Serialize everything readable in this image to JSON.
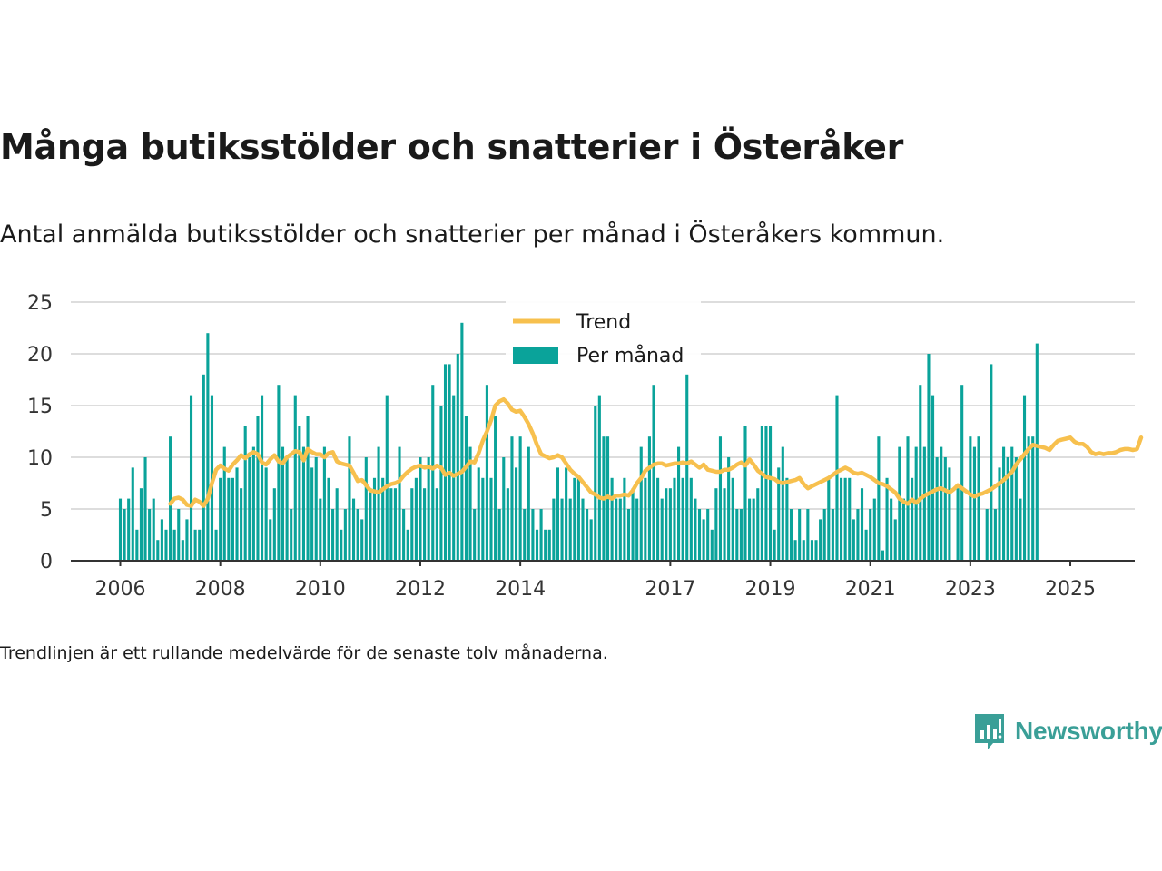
{
  "title": "Många butiksstölder och snatterier i Österåker",
  "subtitle": "Antal anmälda butiksstölder och snatterier per månad i Österåkers kommun.",
  "footnote": "Trendlinjen är ett rullande medelvärde för de senaste tolv månaderna.",
  "brand": {
    "name": "Newsworthy",
    "color": "#3a9f97",
    "icon": "newsworthy-chart-icon"
  },
  "colors": {
    "bars": "#0aa39a",
    "trend": "#f7c04e",
    "grid": "#dddddd",
    "axis": "#333333"
  },
  "chart_data": {
    "type": "bar",
    "x_start": "2006-01",
    "frequency": "monthly",
    "ylim": [
      0,
      25
    ],
    "yticks": [
      0,
      5,
      10,
      15,
      20,
      25
    ],
    "xticks": [
      "2006",
      "2008",
      "2010",
      "2012",
      "2014",
      "2017",
      "2019",
      "2021",
      "2023",
      "2025"
    ],
    "grid": true,
    "legend_position": "top-center",
    "series": [
      {
        "name": "Per månad",
        "type": "bar",
        "values": [
          6,
          5,
          6,
          9,
          3,
          7,
          10,
          5,
          6,
          2,
          4,
          3,
          12,
          3,
          5,
          2,
          4,
          16,
          3,
          3,
          18,
          22,
          16,
          3,
          8,
          11,
          8,
          8,
          9,
          7,
          13,
          10,
          11,
          14,
          16,
          9,
          4,
          7,
          17,
          11,
          10,
          5,
          16,
          13,
          11,
          14,
          9,
          10,
          6,
          11,
          8,
          5,
          7,
          3,
          5,
          12,
          6,
          5,
          4,
          10,
          7,
          8,
          11,
          8,
          16,
          7,
          7,
          11,
          5,
          3,
          7,
          8,
          10,
          7,
          10,
          17,
          7,
          15,
          19,
          19,
          16,
          20,
          23,
          14,
          11,
          5,
          9,
          8,
          17,
          8,
          14,
          5,
          10,
          7,
          12,
          9,
          12,
          5,
          11,
          5,
          3,
          5,
          3,
          3,
          6,
          9,
          6,
          9,
          6,
          8,
          8,
          6,
          5,
          4,
          15,
          16,
          12,
          12,
          8,
          6,
          6,
          8,
          5,
          7,
          6,
          11,
          8,
          12,
          17,
          8,
          6,
          7,
          7,
          8,
          11,
          8,
          18,
          8,
          6,
          5,
          4,
          5,
          3,
          7,
          12,
          7,
          10,
          8,
          5,
          5,
          13,
          6,
          6,
          7,
          13,
          13,
          13,
          3,
          9,
          11,
          8,
          5,
          2,
          5,
          2,
          5,
          2,
          2,
          4,
          5,
          8,
          5,
          16,
          8,
          8,
          8,
          4,
          5,
          7,
          3,
          5,
          6,
          12,
          1,
          8,
          6,
          4,
          11,
          6,
          12,
          8,
          11,
          17,
          11,
          20,
          16,
          10,
          11,
          10,
          9,
          0,
          7,
          17,
          0,
          12,
          11,
          12,
          0,
          5,
          19,
          5,
          9,
          11,
          10,
          11,
          10,
          6,
          16,
          12,
          12,
          21
        ]
      },
      {
        "name": "Trend",
        "type": "line",
        "x_start": "2007-01",
        "values": [
          5.5,
          6.0,
          6.1,
          5.9,
          5.4,
          5.3,
          5.9,
          5.7,
          5.3,
          6.0,
          7.5,
          8.8,
          9.2,
          8.9,
          8.7,
          9.3,
          9.7,
          10.2,
          9.9,
          10.3,
          10.5,
          10.3,
          9.5,
          9.3,
          9.8,
          10.2,
          9.6,
          9.4,
          10.0,
          10.3,
          10.6,
          10.5,
          9.7,
          10.8,
          10.5,
          10.3,
          10.3,
          10.0,
          10.4,
          10.5,
          9.6,
          9.4,
          9.3,
          9.2,
          8.5,
          7.7,
          7.8,
          7.3,
          6.8,
          6.7,
          6.6,
          6.9,
          7.2,
          7.4,
          7.5,
          7.7,
          8.2,
          8.6,
          8.9,
          9.1,
          9.2,
          9.0,
          9.1,
          8.9,
          9.2,
          9.0,
          8.3,
          8.5,
          8.2,
          8.4,
          8.6,
          9.1,
          9.6,
          9.5,
          10.4,
          11.6,
          12.5,
          13.6,
          15.0,
          15.4,
          15.6,
          15.2,
          14.6,
          14.4,
          14.5,
          13.9,
          13.2,
          12.3,
          11.2,
          10.3,
          10.1,
          9.9,
          10.0,
          10.2,
          10.0,
          9.4,
          8.8,
          8.4,
          8.1,
          7.6,
          7.1,
          6.6,
          6.4,
          6.1,
          6.0,
          6.2,
          6.0,
          6.3,
          6.3,
          6.4,
          6.3,
          6.8,
          7.5,
          8.0,
          8.7,
          9.0,
          9.3,
          9.4,
          9.4,
          9.2,
          9.3,
          9.4,
          9.4,
          9.5,
          9.4,
          9.6,
          9.3,
          9.0,
          9.3,
          8.8,
          8.7,
          8.6,
          8.6,
          8.8,
          8.8,
          9.0,
          9.3,
          9.5,
          9.2,
          9.8,
          9.3,
          8.7,
          8.4,
          8.1,
          8.0,
          7.9,
          7.6,
          7.5,
          7.6,
          7.7,
          7.8,
          8.0,
          7.4,
          7.0,
          7.2,
          7.4,
          7.6,
          7.8,
          8.0,
          8.3,
          8.6,
          8.8,
          9.0,
          8.8,
          8.5,
          8.4,
          8.5,
          8.3,
          8.1,
          7.8,
          7.5,
          7.4,
          7.2,
          6.9,
          6.6,
          6.0,
          5.7,
          5.5,
          5.9,
          5.6,
          6.0,
          6.3,
          6.5,
          6.7,
          6.9,
          7.0,
          6.8,
          6.6,
          6.9,
          7.3,
          7.0,
          6.7,
          6.4,
          6.2,
          6.4,
          6.5,
          6.7,
          6.9,
          7.2,
          7.5,
          7.8,
          8.2,
          8.6,
          9.3,
          9.8,
          10.3,
          10.8,
          11.2,
          11.1,
          11.0,
          10.9,
          10.7,
          11.2,
          11.6,
          11.7,
          11.8,
          11.9,
          11.5,
          11.3,
          11.3,
          11.0,
          10.5,
          10.3,
          10.4,
          10.3,
          10.4,
          10.4,
          10.5,
          10.7,
          10.8,
          10.8,
          10.7,
          10.8,
          11.9
        ]
      }
    ]
  }
}
